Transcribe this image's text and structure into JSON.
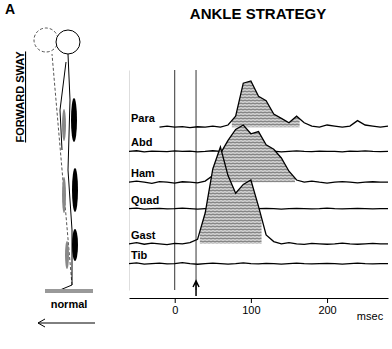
{
  "chart_data": {
    "type": "line",
    "panel_label": "A",
    "title": "ANKLE STRATEGY",
    "annotations": [
      "FORWARD SWAY",
      "normal"
    ],
    "x_label": "msec",
    "x": [
      -60,
      -50,
      -40,
      -30,
      -20,
      -10,
      0,
      10,
      20,
      30,
      40,
      50,
      60,
      70,
      80,
      90,
      100,
      110,
      120,
      130,
      140,
      150,
      160,
      170,
      180,
      190,
      200,
      210,
      220,
      230,
      240,
      250,
      260,
      270,
      280
    ],
    "xlim": [
      -60,
      280
    ],
    "xticks": [
      0,
      100,
      200
    ],
    "ylim": [
      0,
      100
    ],
    "yticks": [],
    "tick_labels": "x",
    "color": "#000000",
    "vlines": [
      0,
      28
    ],
    "series": [
      {
        "name": "Para",
        "burst": [
          75,
          164
        ],
        "values": [
          null,
          null,
          null,
          null,
          74,
          74.5,
          74,
          74.3,
          73.8,
          74.2,
          74,
          74.5,
          74,
          75,
          79,
          94,
          95,
          88,
          86,
          80,
          78,
          76,
          79,
          76,
          74.5,
          74,
          75,
          74.5,
          74,
          74.5,
          77,
          75,
          74.5,
          74,
          74.5
        ]
      },
      {
        "name": "Abd",
        "values": [
          63,
          63.3,
          62.8,
          63.1,
          63,
          62.9,
          63.2,
          63,
          63.1,
          62.8,
          63,
          63.3,
          63,
          62.9,
          63.1,
          63,
          63.2,
          62.9,
          63,
          63.1,
          62.8,
          63,
          63.2,
          63,
          62.9,
          63.1,
          63,
          63,
          62.8,
          63.1,
          63,
          63.2,
          63,
          62.9,
          63
        ]
      },
      {
        "name": "Ham",
        "burst": [
          49,
          158
        ],
        "values": [
          49,
          49.5,
          49,
          48.5,
          49.3,
          49,
          48.6,
          49.2,
          49,
          48.7,
          49.5,
          52,
          62,
          68,
          73,
          75,
          71,
          72,
          66,
          64,
          60,
          54,
          50,
          49,
          49.5,
          49,
          48.6,
          49,
          49.3,
          49,
          48.7,
          49,
          49.2,
          49,
          49
        ]
      },
      {
        "name": "Quad",
        "values": [
          37,
          37.2,
          36.8,
          37,
          37.1,
          36.9,
          37,
          37.2,
          37,
          36.8,
          37,
          37.1,
          37,
          36.9,
          37.2,
          37,
          36.9,
          37,
          37.1,
          37,
          36.8,
          37,
          37.1,
          37,
          36.9,
          37,
          37.2,
          37,
          36.9,
          37,
          37.1,
          37,
          36.9,
          37,
          37
        ]
      },
      {
        "name": "Gast",
        "burst": [
          33,
          114
        ],
        "values": [
          21,
          21.5,
          20.8,
          21.3,
          21,
          20.6,
          21.2,
          21,
          21.5,
          23,
          35,
          55,
          65,
          52,
          44,
          48,
          50,
          38,
          25,
          22,
          21,
          21.5,
          21,
          20.7,
          21.2,
          21,
          20.8,
          21,
          21.3,
          21,
          20.8,
          21,
          21.2,
          21,
          21
        ]
      },
      {
        "name": "Tib",
        "values": [
          12,
          12.3,
          11.8,
          12,
          12.2,
          11.9,
          12,
          12.4,
          12,
          11.7,
          12,
          12.2,
          12,
          11.8,
          12,
          12.3,
          12,
          11.9,
          12.1,
          12,
          11.8,
          12,
          12.2,
          12,
          11.9,
          12,
          12.1,
          12,
          11.8,
          12,
          12.2,
          12,
          11.9,
          12,
          12
        ]
      }
    ]
  }
}
